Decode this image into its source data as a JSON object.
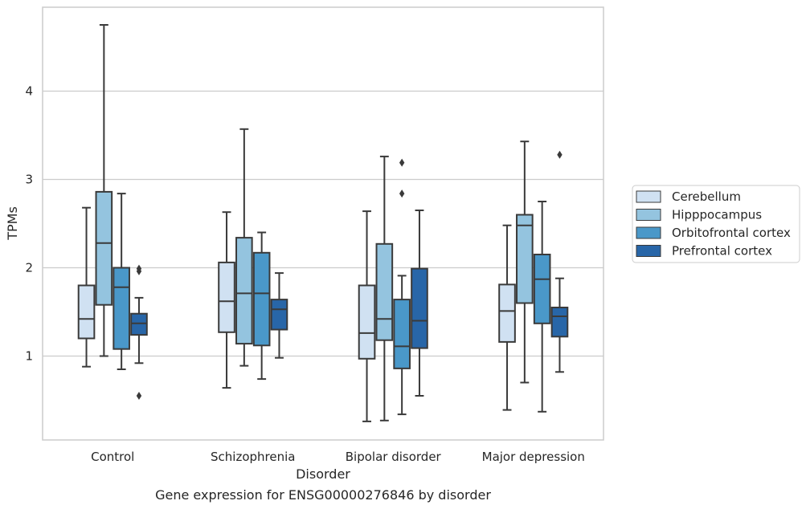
{
  "chart_data": {
    "type": "box",
    "caption": "Gene expression for ENSG00000276846 by disorder",
    "xlabel": "Disorder",
    "ylabel": "TPMs",
    "ylim": [
      0.05,
      4.95
    ],
    "yticks": [
      1,
      2,
      3,
      4
    ],
    "grid": true,
    "legend_position": "right",
    "categories": [
      "Control",
      "Schizophrenia",
      "Bipolar disorder",
      "Major depression"
    ],
    "series": [
      {
        "name": "Cerebellum",
        "color": "#d0e1f2",
        "boxes": [
          {
            "whislo": 0.88,
            "q1": 1.2,
            "med": 1.42,
            "q3": 1.8,
            "whishi": 2.68,
            "fliers": []
          },
          {
            "whislo": 0.64,
            "q1": 1.27,
            "med": 1.62,
            "q3": 2.06,
            "whishi": 2.63,
            "fliers": []
          },
          {
            "whislo": 0.26,
            "q1": 0.97,
            "med": 1.26,
            "q3": 1.8,
            "whishi": 2.64,
            "fliers": []
          },
          {
            "whislo": 0.39,
            "q1": 1.16,
            "med": 1.51,
            "q3": 1.81,
            "whishi": 2.48,
            "fliers": []
          }
        ]
      },
      {
        "name": "Hipppocampus",
        "color": "#94c4df",
        "boxes": [
          {
            "whislo": 1.0,
            "q1": 1.58,
            "med": 2.28,
            "q3": 2.86,
            "whishi": 4.75,
            "fliers": []
          },
          {
            "whislo": 0.89,
            "q1": 1.14,
            "med": 1.71,
            "q3": 2.34,
            "whishi": 3.57,
            "fliers": []
          },
          {
            "whislo": 0.27,
            "q1": 1.18,
            "med": 1.42,
            "q3": 2.27,
            "whishi": 3.26,
            "fliers": []
          },
          {
            "whislo": 0.7,
            "q1": 1.6,
            "med": 2.48,
            "q3": 2.6,
            "whishi": 3.43,
            "fliers": []
          }
        ]
      },
      {
        "name": "Orbitofrontal cortex",
        "color": "#4a98c9",
        "boxes": [
          {
            "whislo": 0.85,
            "q1": 1.08,
            "med": 1.78,
            "q3": 2.0,
            "whishi": 2.84,
            "fliers": []
          },
          {
            "whislo": 0.74,
            "q1": 1.12,
            "med": 1.71,
            "q3": 2.17,
            "whishi": 2.4,
            "fliers": []
          },
          {
            "whislo": 0.34,
            "q1": 0.86,
            "med": 1.11,
            "q3": 1.64,
            "whishi": 1.91,
            "fliers": [
              2.84,
              3.19
            ]
          },
          {
            "whislo": 0.37,
            "q1": 1.37,
            "med": 1.87,
            "q3": 2.15,
            "whishi": 2.75,
            "fliers": []
          }
        ]
      },
      {
        "name": "Prefrontal cortex",
        "color": "#2866a8",
        "boxes": [
          {
            "whislo": 0.92,
            "q1": 1.24,
            "med": 1.37,
            "q3": 1.48,
            "whishi": 1.66,
            "fliers": [
              0.55,
              1.96,
              1.99
            ]
          },
          {
            "whislo": 0.98,
            "q1": 1.3,
            "med": 1.53,
            "q3": 1.64,
            "whishi": 1.94,
            "fliers": []
          },
          {
            "whislo": 0.55,
            "q1": 1.09,
            "med": 1.4,
            "q3": 1.99,
            "whishi": 2.65,
            "fliers": []
          },
          {
            "whislo": 0.82,
            "q1": 1.22,
            "med": 1.45,
            "q3": 1.55,
            "whishi": 1.88,
            "fliers": [
              3.28
            ]
          }
        ]
      }
    ]
  }
}
